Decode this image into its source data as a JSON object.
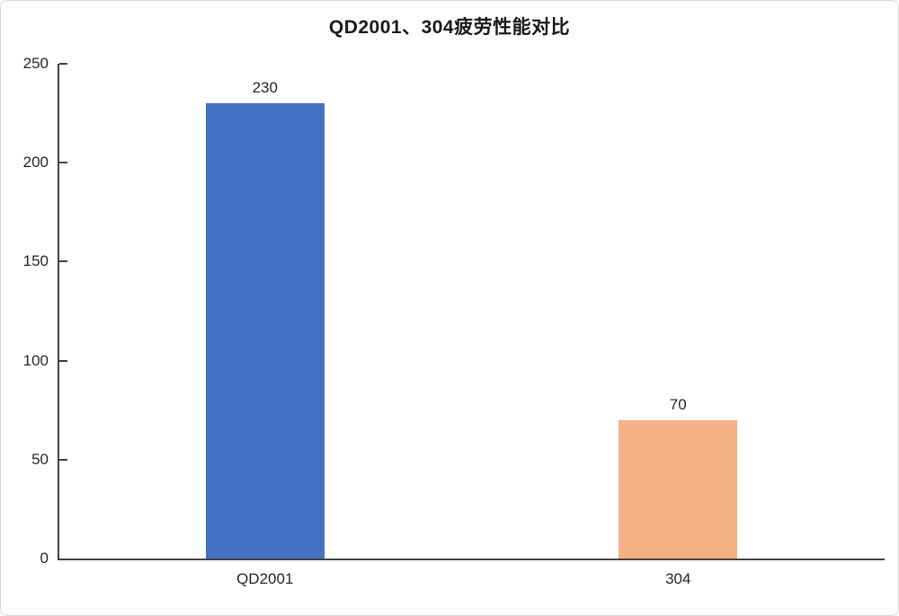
{
  "window": {
    "background": "#ffffff",
    "border_color": "#d9d9d9"
  },
  "chart_data": {
    "type": "bar",
    "title": "QD2001、304疲劳性能对比",
    "categories": [
      "QD2001",
      "304"
    ],
    "values": [
      230,
      70
    ],
    "data_labels": [
      "230",
      "70"
    ],
    "bar_colors": [
      "#4472C4",
      "#F4B183"
    ],
    "xlabel": "",
    "ylabel": "",
    "ylim": [
      0,
      250
    ],
    "yticks": [
      0,
      50,
      100,
      150,
      200,
      250
    ],
    "grid": false,
    "legend": false,
    "axis_color": "#404040",
    "text_color": "#262626",
    "title_color": "#1a1a1a"
  }
}
